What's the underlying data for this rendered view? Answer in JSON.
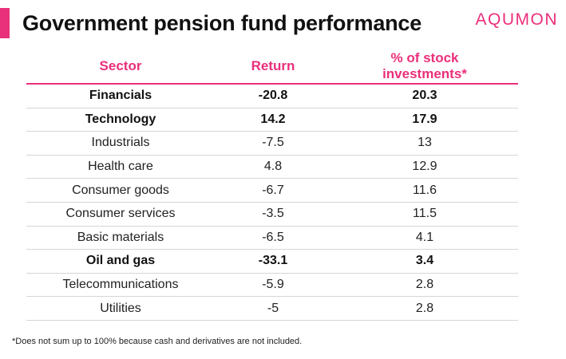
{
  "header": {
    "title": "Government pension fund performance",
    "brand": "AQUMON"
  },
  "table": {
    "columns": [
      "Sector",
      "Return",
      "% of stock investments*"
    ],
    "rows": [
      {
        "sector": "Financials",
        "return": "-20.8",
        "share": "20.3",
        "bold": true
      },
      {
        "sector": "Technology",
        "return": "14.2",
        "share": "17.9",
        "bold": true
      },
      {
        "sector": "Industrials",
        "return": "-7.5",
        "share": "13",
        "bold": false
      },
      {
        "sector": "Health care",
        "return": "4.8",
        "share": "12.9",
        "bold": false
      },
      {
        "sector": "Consumer goods",
        "return": "-6.7",
        "share": "11.6",
        "bold": false
      },
      {
        "sector": "Consumer services",
        "return": "-3.5",
        "share": "11.5",
        "bold": false
      },
      {
        "sector": "Basic materials",
        "return": "-6.5",
        "share": "4.1",
        "bold": false
      },
      {
        "sector": "Oil and gas",
        "return": "-33.1",
        "share": "3.4",
        "bold": true
      },
      {
        "sector": "Telecommunications",
        "return": "-5.9",
        "share": "2.8",
        "bold": false
      },
      {
        "sector": "Utilities",
        "return": "-5",
        "share": "2.8",
        "bold": false
      }
    ]
  },
  "footnote": "*Does not sum up to 100% because cash and derivatives are not included.",
  "colors": {
    "accent": "#e8317a",
    "header_text": "#ea2f7b"
  }
}
